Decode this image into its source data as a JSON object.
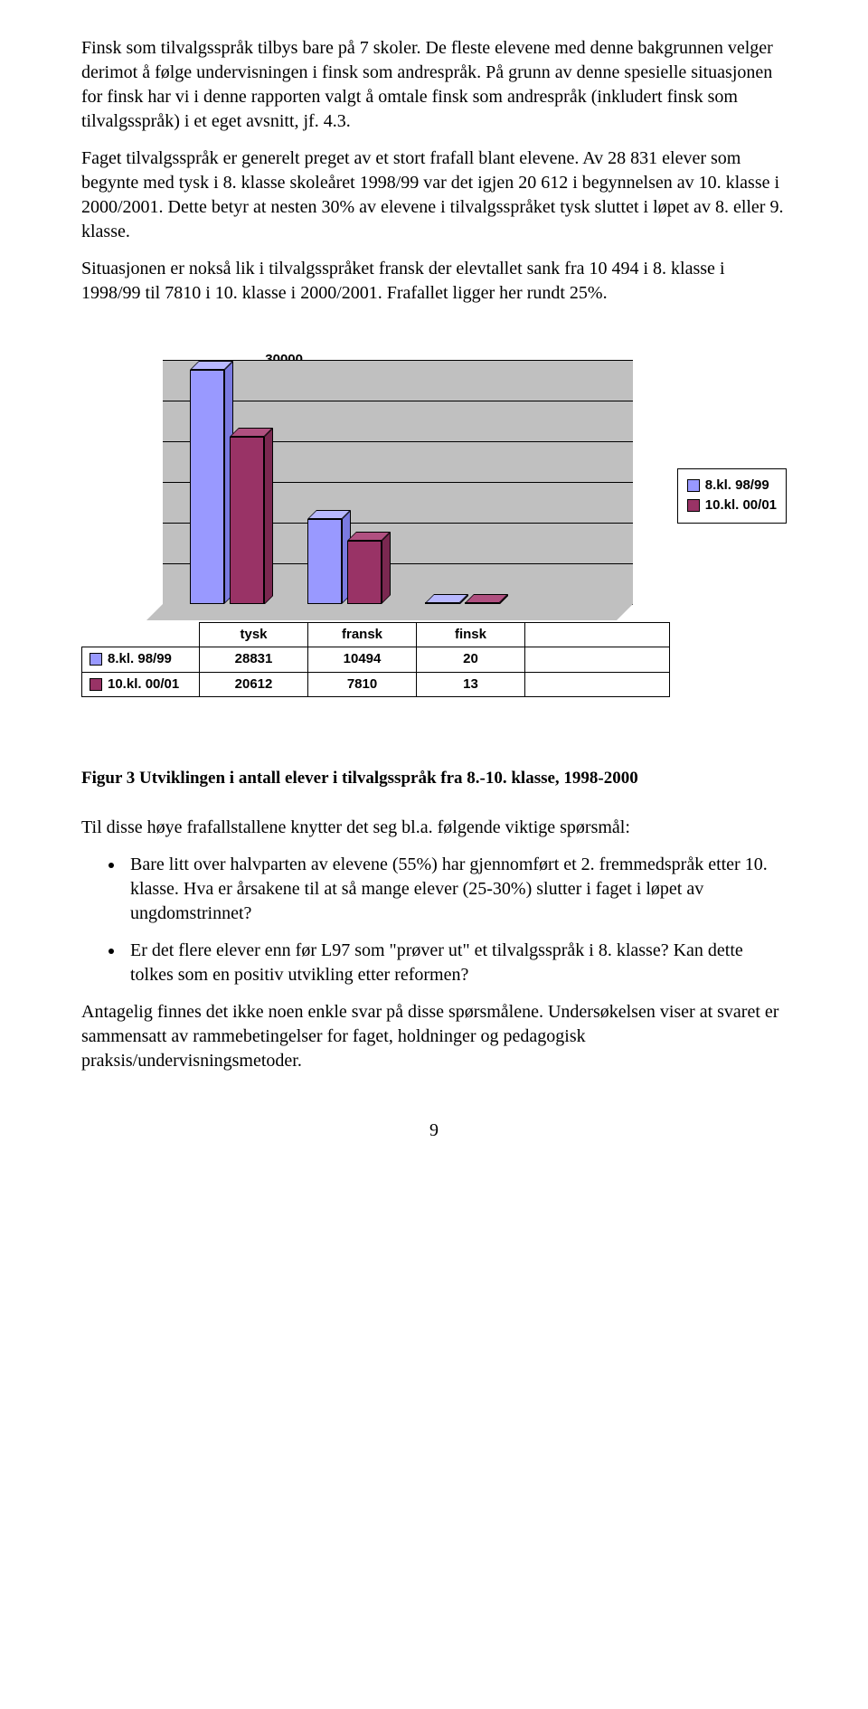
{
  "paragraphs": {
    "p1": "Finsk som tilvalgsspråk tilbys bare på 7 skoler. De fleste elevene med denne bakgrunnen velger derimot å følge undervisningen i finsk som andrespråk. På grunn av denne spesielle situasjonen for finsk har vi i denne rapporten valgt å omtale finsk som andrespråk (inkludert finsk som tilvalgsspråk) i et eget avsnitt, jf. 4.3.",
    "p2": "Faget tilvalgsspråk er generelt preget av et stort frafall blant elevene. Av 28 831 elever som begynte med tysk i 8. klasse skoleåret 1998/99 var det igjen 20 612 i begynnelsen av 10. klasse i 2000/2001. Dette betyr at nesten 30% av elevene i tilvalgsspråket tysk sluttet i løpet av 8. eller 9. klasse.",
    "p3": "Situasjonen er nokså lik i tilvalgsspråket fransk der elevtallet sank fra 10 494 i 8. klasse i 1998/99 til 7810 i 10. klasse i 2000/2001. Frafallet ligger her rundt 25%.",
    "p4": "Til disse høye frafallstallene knytter det seg bl.a. følgende viktige spørsmål:",
    "p5": "Antagelig finnes det ikke noen enkle svar på disse spørsmålene. Undersøkelsen viser at svaret er sammensatt av rammebetingelser for faget, holdninger og pedagogisk praksis/undervisningsmetoder."
  },
  "bullets": {
    "b1": "Bare litt over halvparten av elevene (55%) har gjennomført et 2. fremmedspråk etter 10. klasse. Hva er årsakene til at så mange elever (25-30%) slutter i faget i løpet av ungdomstrinnet?",
    "b2": "Er det flere elever enn før L97 som \"prøver ut\" et tilvalgsspråk i 8. klasse? Kan dette tolkes som en positiv utvikling etter reformen?"
  },
  "caption": "Figur 3 Utviklingen i antall elever i tilvalgsspråk fra 8.-10. klasse, 1998-2000",
  "chart": {
    "type": "bar",
    "categories": [
      "tysk",
      "fransk",
      "finsk"
    ],
    "series": [
      {
        "name": "8.kl. 98/99",
        "color": "#9999ff",
        "color_side": "#7a7ae0",
        "color_top": "#b8b8ff",
        "values": [
          28831,
          10494,
          20
        ]
      },
      {
        "name": "10.kl. 00/01",
        "color": "#993366",
        "color_side": "#7a2850",
        "color_top": "#b05080",
        "values": [
          20612,
          7810,
          13
        ]
      }
    ],
    "yticks": [
      0,
      5000,
      10000,
      15000,
      20000,
      25000,
      30000
    ],
    "ymax": 30000,
    "plot_bg": "#c0c0c0",
    "grid_color": "#000000"
  },
  "pagenum": "9"
}
